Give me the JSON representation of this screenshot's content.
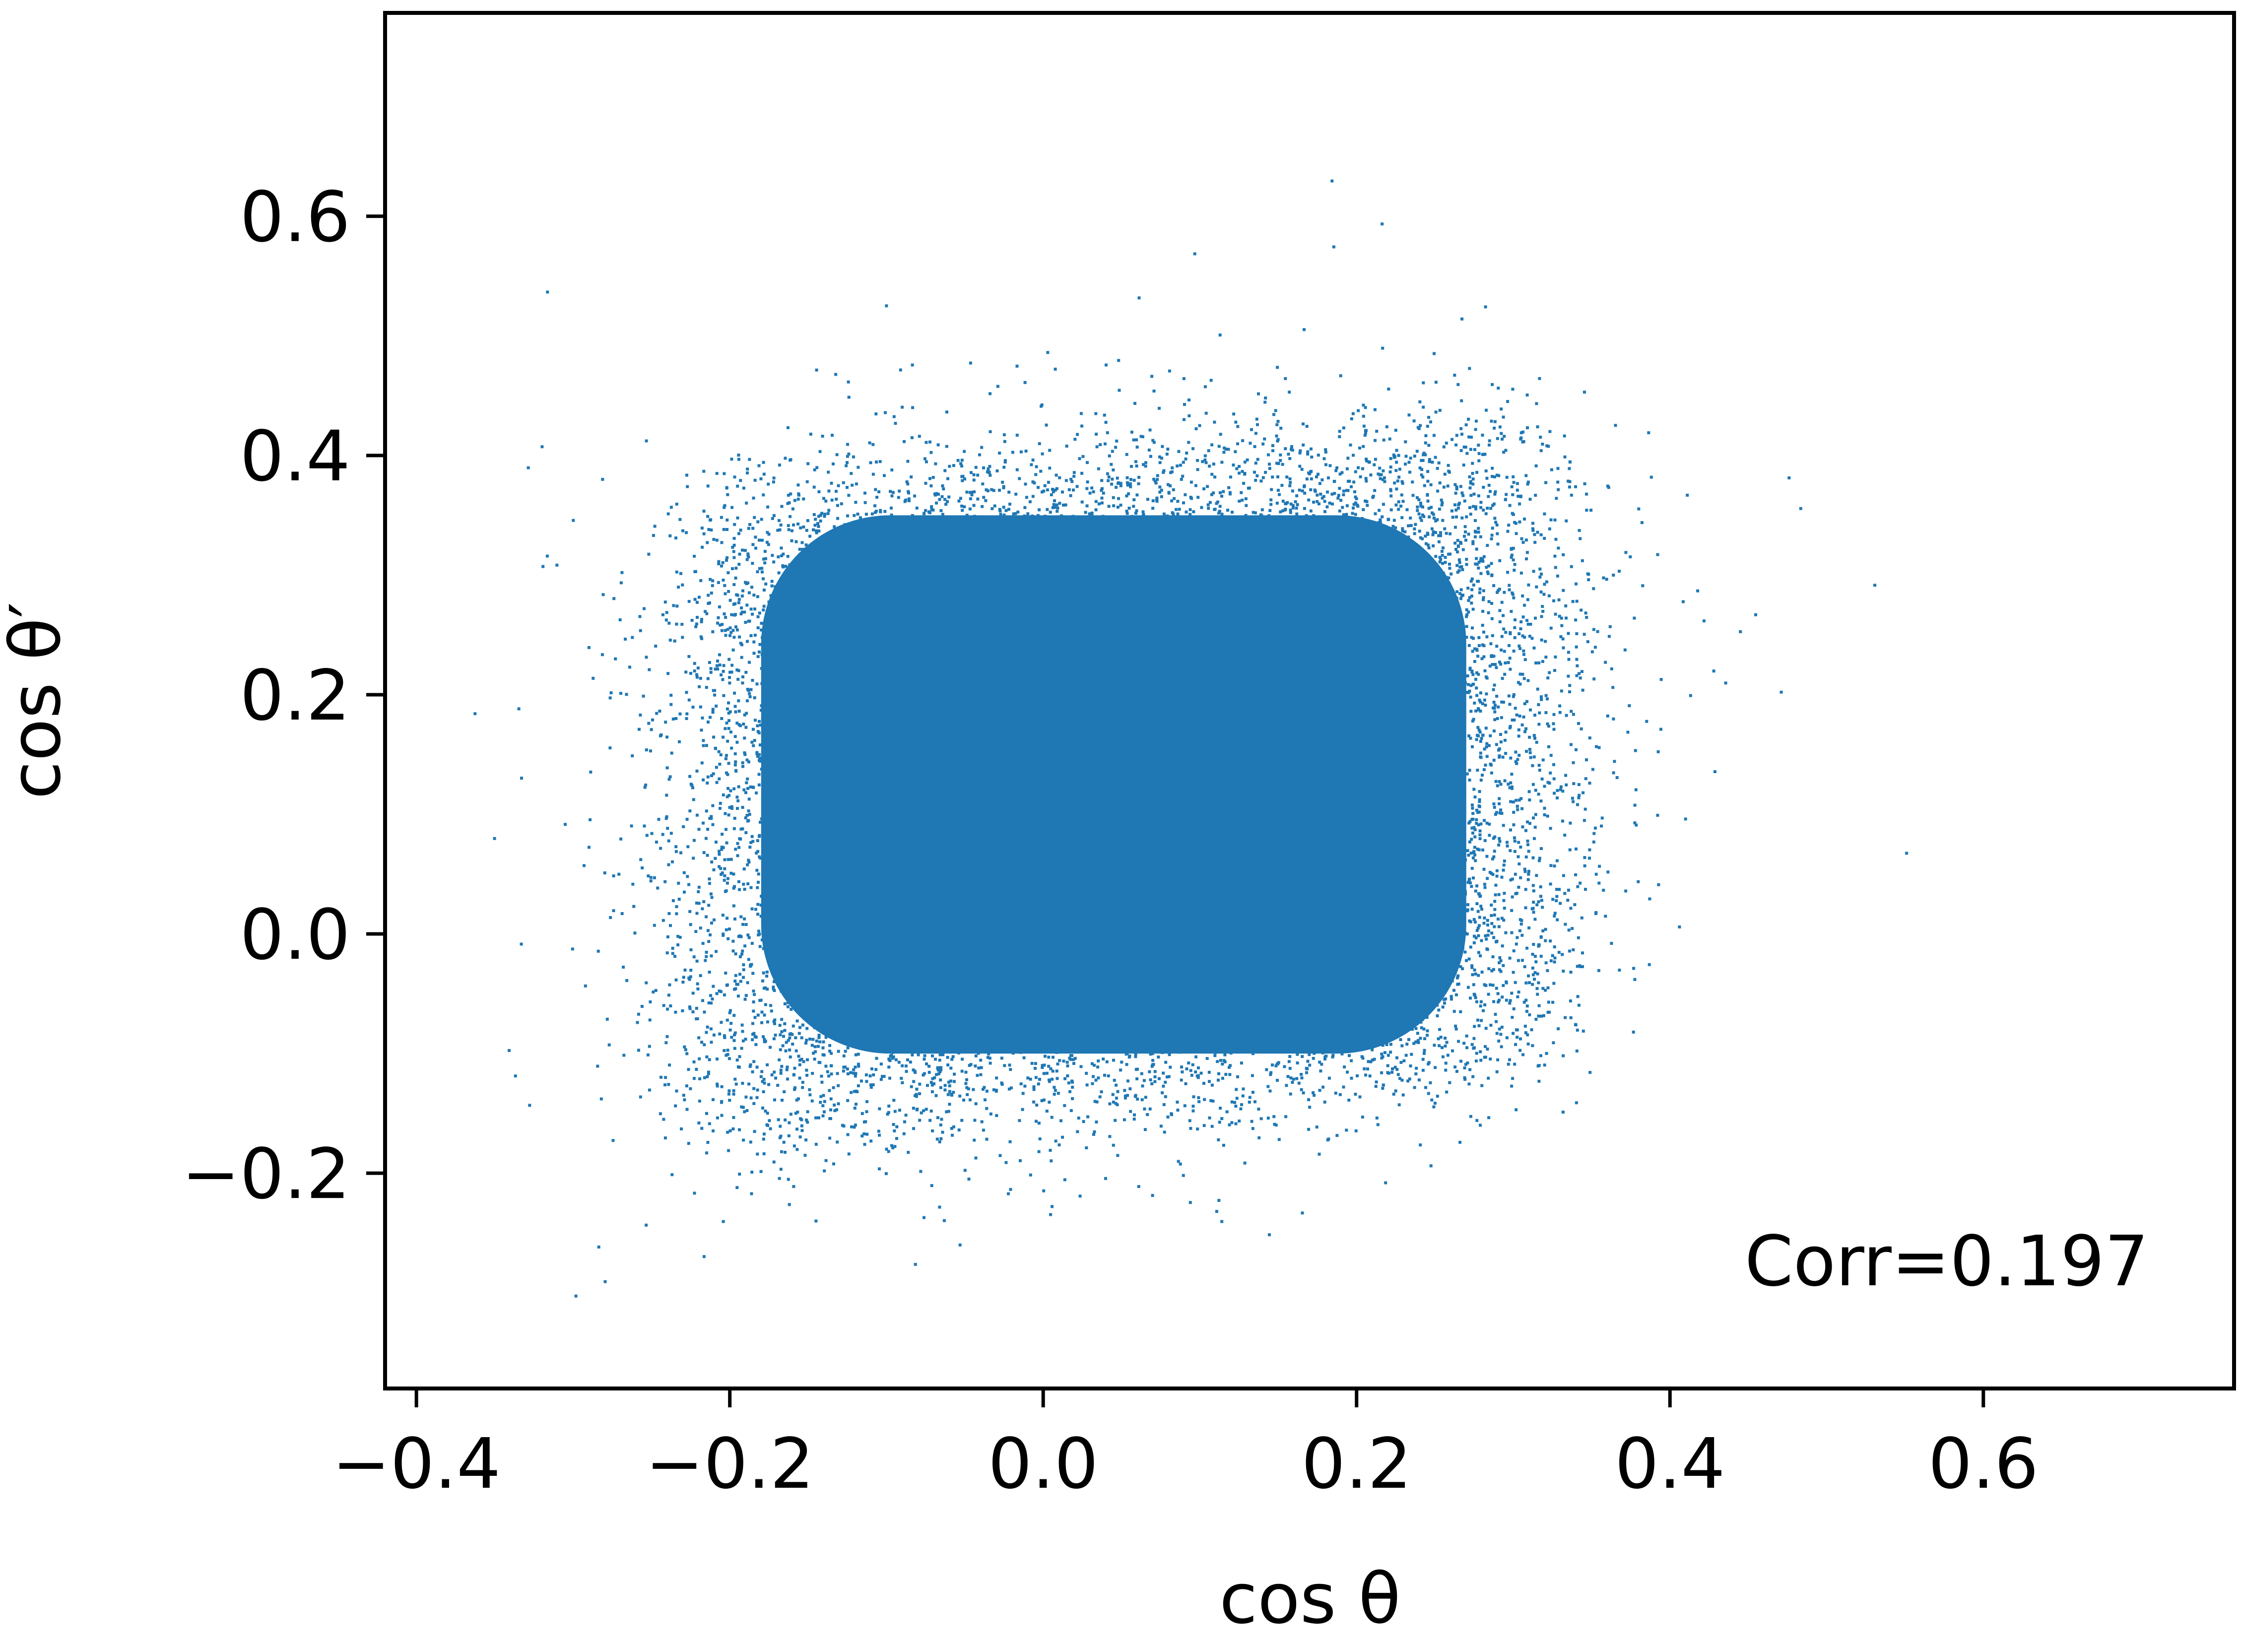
{
  "chart_data": {
    "type": "scatter",
    "title": "",
    "xlabel": "cos θ",
    "ylabel": "cos θ′",
    "xlim": [
      -0.42,
      0.76
    ],
    "ylim": [
      -0.38,
      0.77
    ],
    "x_ticks": [
      -0.4,
      -0.2,
      0.0,
      0.2,
      0.4,
      0.6
    ],
    "x_tick_labels": [
      "−0.4",
      "−0.2",
      "0.0",
      "0.2",
      "0.4",
      "0.6"
    ],
    "y_ticks": [
      -0.2,
      0.0,
      0.2,
      0.4,
      0.6
    ],
    "y_tick_labels": [
      "−0.2",
      "0.0",
      "0.2",
      "0.4",
      "0.6"
    ],
    "grid": false,
    "legend": "none",
    "annotation": "Corr=0.197",
    "correlation": 0.197,
    "series_color": "#1f77b4",
    "series": [
      {
        "core_region": {
          "x_range": [
            -0.2,
            0.3
          ],
          "y_range": [
            -0.12,
            0.38
          ]
        },
        "outer_spread": {
          "x_range": [
            -0.37,
            0.7
          ],
          "y_range": [
            -0.33,
            0.72
          ]
        }
      }
    ]
  }
}
